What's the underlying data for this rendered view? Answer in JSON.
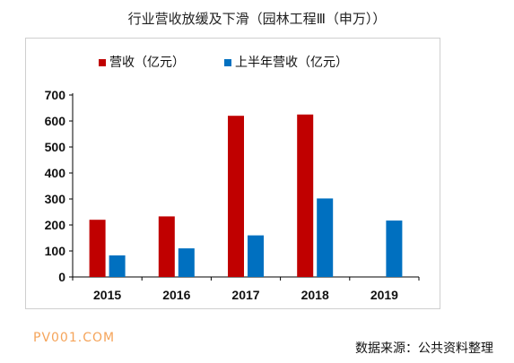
{
  "title": "行业营收放缓及下滑（园林工程Ⅲ（申万））",
  "watermark": "PV001.COM",
  "source": "数据来源：公共资料整理",
  "colors": {
    "revenue": "#C00000",
    "half_year": "#0070C0",
    "axis": "#000000"
  },
  "chart_data": {
    "type": "bar",
    "categories": [
      "2015",
      "2016",
      "2017",
      "2018",
      "2019"
    ],
    "series": [
      {
        "name": "营收（亿元）",
        "values": [
          220,
          233,
          620,
          625,
          null
        ]
      },
      {
        "name": "上半年营收（亿元）",
        "values": [
          83,
          110,
          160,
          302,
          217
        ]
      }
    ],
    "yticks": [
      0,
      100,
      200,
      300,
      400,
      500,
      600,
      700
    ],
    "ylim": [
      0,
      700
    ],
    "legend_position": "top",
    "grid": false
  }
}
